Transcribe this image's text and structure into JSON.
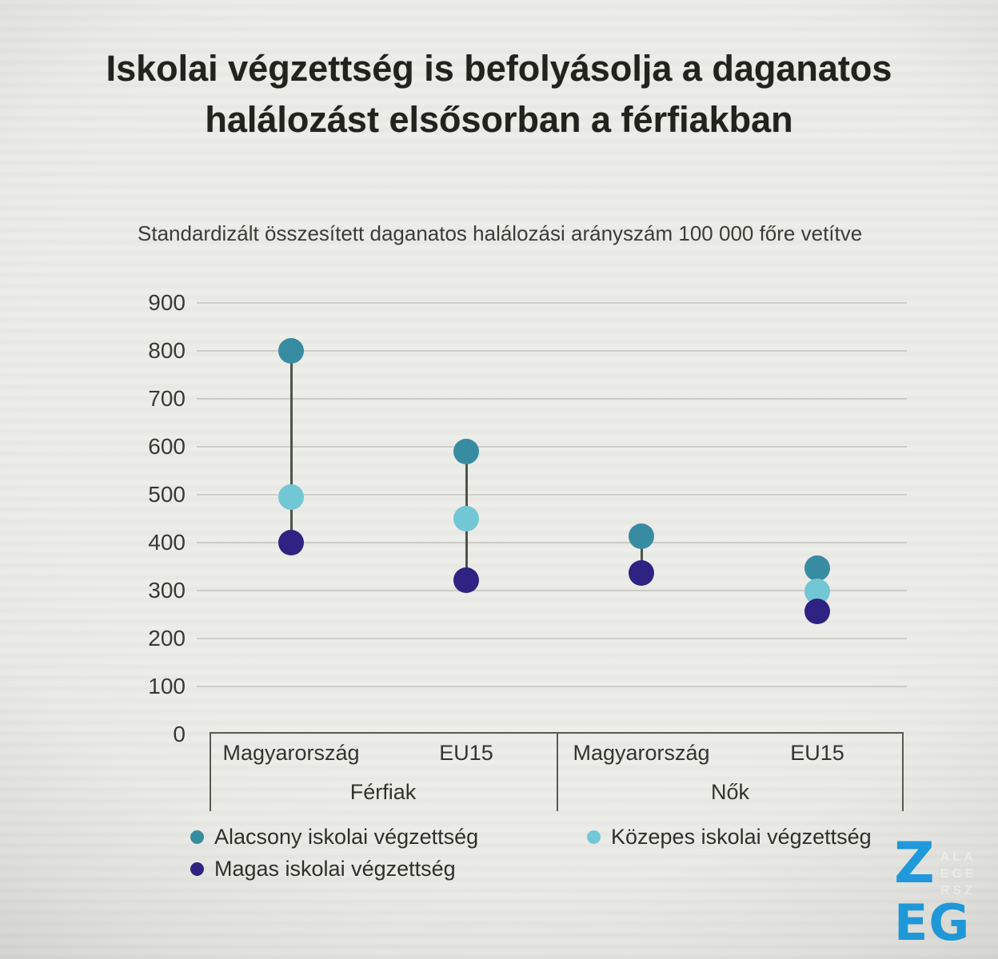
{
  "chart_data": {
    "type": "scatter",
    "title": "Iskolai végzettség is befolyásolja a daganatos halálozást elsősorban a férfiakban",
    "subtitle": "Standardizált összesített daganatos halálozási arányszám 100 000 főre vetítve",
    "ylim": [
      0,
      900
    ],
    "yticks": [
      900,
      800,
      700,
      600,
      500,
      400,
      300,
      200,
      100,
      0
    ],
    "grid": "horizontal",
    "legend_position": "bottom",
    "groups": [
      {
        "label": "Férfiak",
        "categories": [
          "Magyarország",
          "EU15"
        ]
      },
      {
        "label": "Nők",
        "categories": [
          "Magyarország",
          "EU15"
        ]
      }
    ],
    "series": [
      {
        "name": "Alacsony iskolai végzettség",
        "color": "#388CA1",
        "values": [
          800,
          590,
          413,
          347
        ]
      },
      {
        "name": "Közepes iskolai végzettség",
        "color": "#72C7D4",
        "values": [
          495,
          450,
          null,
          299
        ]
      },
      {
        "name": "Magas iskolai végzettség",
        "color": "#2E2383",
        "values": [
          400,
          322,
          337,
          257
        ]
      }
    ]
  },
  "logo": {
    "top": "Z",
    "bottom": "EG",
    "side": [
      "ALA",
      "EGE",
      "RSZ"
    ],
    "color": "#1B9BE0"
  }
}
